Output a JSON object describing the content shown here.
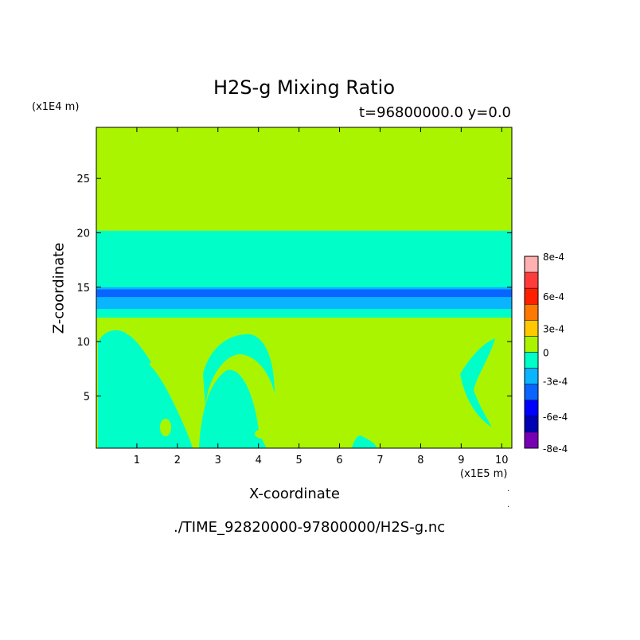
{
  "chart_data": {
    "type": "heatmap",
    "title": "H2S-g Mixing Ratio",
    "subtitle": "t=96800000.0 y=0.0",
    "xlabel": "X-coordinate",
    "ylabel": "Z-coordinate",
    "x_unit_label": "(x1E5 m)",
    "y_unit_label": "(x1E4 m)",
    "xlim": [
      0,
      10.25
    ],
    "ylim": [
      0.2,
      29.7
    ],
    "x_ticks": [
      "1",
      "2",
      "3",
      "4",
      "5",
      "6",
      "7",
      "8",
      "9",
      "10"
    ],
    "y_ticks": [
      "5",
      "10",
      "15",
      "20",
      "25"
    ],
    "colorbar": {
      "labels": [
        "8e-4",
        "6e-4",
        "3e-4",
        "0",
        "-3e-4",
        "-6e-4",
        "-8e-4"
      ],
      "levels": [
        {
          "value": "8e-4",
          "color": "#ffb0b0"
        },
        {
          "value": "7e-4",
          "color": "#ff3c3c"
        },
        {
          "value": "6e-4",
          "color": "#ff2000"
        },
        {
          "value": "4.5e-4",
          "color": "#ff7800"
        },
        {
          "value": "3e-4",
          "color": "#ffc800"
        },
        {
          "value": "0",
          "color": "#aaf400"
        },
        {
          "value": "-1.5e-4",
          "color": "#00ffc8"
        },
        {
          "value": "-3e-4",
          "color": "#0ab4ff"
        },
        {
          "value": "-4.5e-4",
          "color": "#0a64ff"
        },
        {
          "value": "-6e-4",
          "color": "#0000ff"
        },
        {
          "value": "-7e-4",
          "color": "#0000b4"
        },
        {
          "value": "-8e-4",
          "color": "#7800b4"
        }
      ]
    },
    "background_color": "#aaf400",
    "bands": [
      {
        "z_from": 12.2,
        "z_to": 20.2,
        "color": "#00ffc8"
      },
      {
        "z_from": 13.0,
        "z_to": 15.0,
        "color": "#0ab4ff"
      },
      {
        "z_from": 14.1,
        "z_to": 14.8,
        "color": "#0a64ff"
      }
    ]
  },
  "footer": "./TIME_92820000-97800000/H2S-g.nc"
}
